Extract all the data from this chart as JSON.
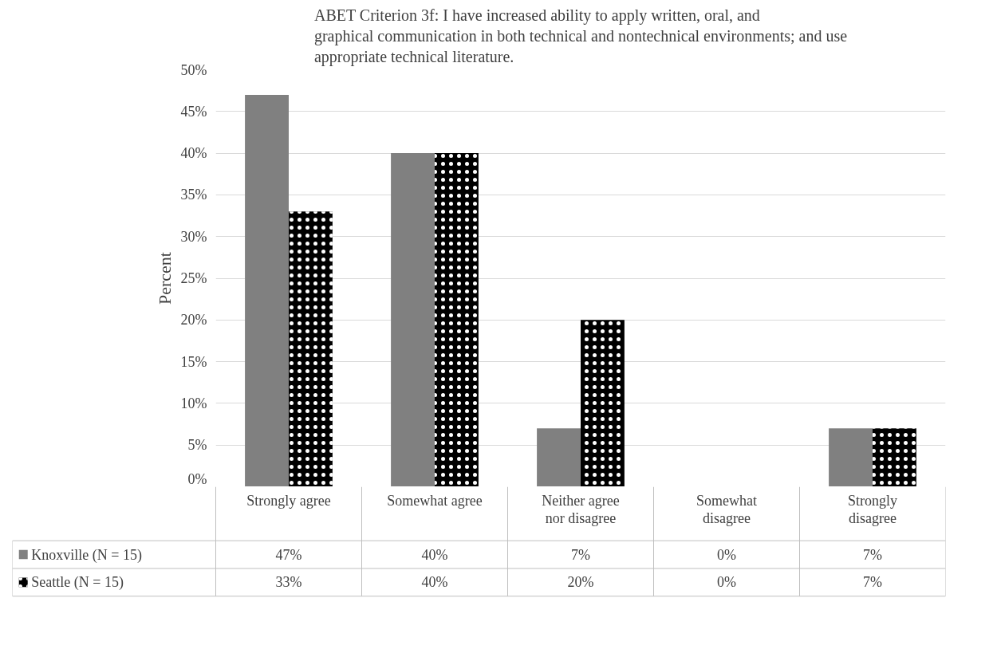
{
  "chart_data": {
    "type": "bar",
    "title": "ABET Criterion 3f: I have increased ability to apply written, oral, and graphical communication in both technical and nontechnical environments; and use appropriate technical literature.",
    "ylabel": "Percent",
    "categories": [
      "Strongly agree",
      "Somewhat agree",
      "Neither agree nor disagree",
      "Somewhat disagree",
      "Strongly disagree"
    ],
    "series": [
      {
        "name": "Knoxville (N = 15)",
        "color": "#808080",
        "values": [
          47,
          40,
          7,
          0,
          7
        ],
        "value_labels": [
          "47%",
          "40%",
          "7%",
          "0%",
          "7%"
        ]
      },
      {
        "name": "Seattle (N = 15)",
        "color": "#000000",
        "values": [
          33,
          40,
          20,
          0,
          7
        ],
        "value_labels": [
          "33%",
          "40%",
          "20%",
          "0%",
          "7%"
        ]
      }
    ],
    "ylim": [
      0,
      50
    ],
    "yticks": [
      {
        "value": 0,
        "label": "0%"
      },
      {
        "value": 5,
        "label": "5%"
      },
      {
        "value": 10,
        "label": "10%"
      },
      {
        "value": 15,
        "label": "15%"
      },
      {
        "value": 20,
        "label": "20%"
      },
      {
        "value": 25,
        "label": "25%"
      },
      {
        "value": 30,
        "label": "30%"
      },
      {
        "value": 35,
        "label": "35%"
      },
      {
        "value": 40,
        "label": "40%"
      },
      {
        "value": 45,
        "label": "45%"
      },
      {
        "value": 50,
        "label": "50%"
      }
    ],
    "grid": "y",
    "legend": "bottom"
  }
}
